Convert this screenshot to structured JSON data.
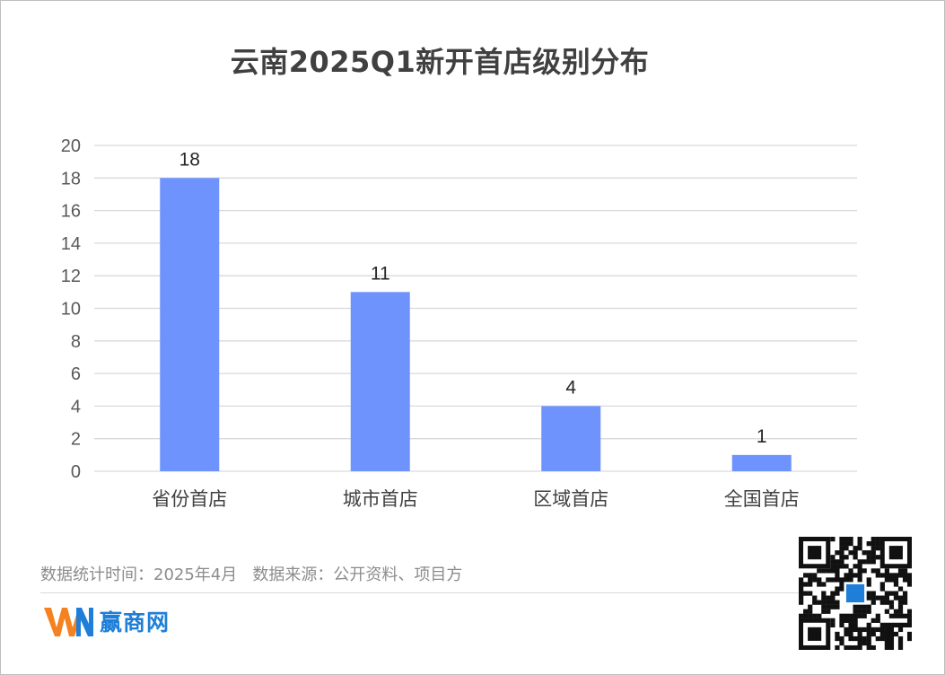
{
  "title": "云南2025Q1新开首店级别分布",
  "chart_data": {
    "type": "bar",
    "title": "云南2025Q1新开首店级别分布",
    "categories": [
      "省份首店",
      "城市首店",
      "区域首店",
      "全国首店"
    ],
    "values": [
      18,
      11,
      4,
      1
    ],
    "ylim": [
      0,
      20
    ],
    "yticks": [
      0,
      2,
      4,
      6,
      8,
      10,
      12,
      14,
      16,
      18,
      20
    ],
    "grid": true,
    "data_labels": true,
    "bar_color": "#6f93fc"
  },
  "footer": {
    "note": "数据统计时间：2025年4月   数据来源：公开资料、项目方"
  },
  "brand": {
    "logo_text": "赢商网",
    "logo_colors": [
      "#f58220",
      "#1f7fd8"
    ],
    "qr_icon": "qr-code-icon"
  }
}
